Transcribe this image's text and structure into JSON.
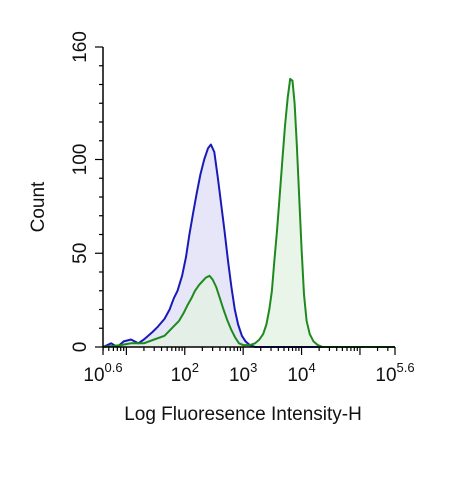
{
  "chart_data": {
    "type": "area",
    "xlabel": "Log Fluoresence Intensity-H",
    "ylabel": "Count",
    "x_scale": "log",
    "xlim": [
      3.98,
      398107
    ],
    "ylim": [
      0,
      160
    ],
    "y_ticks": [
      0,
      50,
      100,
      160
    ],
    "y_tick_labels": [
      "0",
      "50",
      "100",
      "160"
    ],
    "x_ticks": [
      {
        "value": 3.98,
        "base": "10",
        "exp": "0.6"
      },
      {
        "value": 100,
        "base": "10",
        "exp": "2"
      },
      {
        "value": 1000,
        "base": "10",
        "exp": "3"
      },
      {
        "value": 10000,
        "base": "10",
        "exp": "4"
      },
      {
        "value": 398107,
        "base": "10",
        "exp": "5.6"
      }
    ],
    "grid": false,
    "series": [
      {
        "color": "#1a1ab8",
        "fill": "#ddddf5",
        "points": [
          [
            4.0,
            0
          ],
          [
            5.5,
            2
          ],
          [
            7,
            0
          ],
          [
            9,
            3
          ],
          [
            12,
            4
          ],
          [
            16,
            2
          ],
          [
            20,
            4
          ],
          [
            28,
            8
          ],
          [
            35,
            11
          ],
          [
            45,
            15
          ],
          [
            55,
            20
          ],
          [
            65,
            26
          ],
          [
            75,
            30
          ],
          [
            90,
            38
          ],
          [
            105,
            48
          ],
          [
            120,
            60
          ],
          [
            140,
            72
          ],
          [
            160,
            82
          ],
          [
            185,
            92
          ],
          [
            215,
            100
          ],
          [
            250,
            106
          ],
          [
            280,
            108
          ],
          [
            320,
            104
          ],
          [
            370,
            90
          ],
          [
            420,
            76
          ],
          [
            480,
            62
          ],
          [
            550,
            46
          ],
          [
            630,
            32
          ],
          [
            720,
            20
          ],
          [
            820,
            12
          ],
          [
            950,
            6
          ],
          [
            1100,
            3
          ],
          [
            1300,
            1
          ],
          [
            1600,
            0
          ],
          [
            3000,
            0
          ],
          [
            398000,
            0
          ]
        ]
      },
      {
        "color": "#1e8a1e",
        "fill": "#e2f2e2",
        "points": [
          [
            4.0,
            0
          ],
          [
            8,
            1
          ],
          [
            12,
            2
          ],
          [
            20,
            2
          ],
          [
            30,
            4
          ],
          [
            45,
            6
          ],
          [
            60,
            10
          ],
          [
            80,
            14
          ],
          [
            95,
            18
          ],
          [
            110,
            22
          ],
          [
            130,
            26
          ],
          [
            150,
            30
          ],
          [
            175,
            33
          ],
          [
            200,
            35
          ],
          [
            230,
            37
          ],
          [
            265,
            38
          ],
          [
            300,
            36
          ],
          [
            345,
            32
          ],
          [
            400,
            26
          ],
          [
            460,
            20
          ],
          [
            540,
            14
          ],
          [
            630,
            9
          ],
          [
            730,
            5
          ],
          [
            850,
            2
          ],
          [
            1000,
            1
          ],
          [
            1300,
            1
          ],
          [
            1600,
            2
          ],
          [
            1900,
            4
          ],
          [
            2200,
            7
          ],
          [
            2500,
            12
          ],
          [
            2800,
            20
          ],
          [
            3100,
            30
          ],
          [
            3400,
            45
          ],
          [
            3800,
            62
          ],
          [
            4200,
            80
          ],
          [
            4700,
            100
          ],
          [
            5200,
            118
          ],
          [
            5800,
            133
          ],
          [
            6400,
            143
          ],
          [
            7000,
            142
          ],
          [
            7600,
            130
          ],
          [
            8300,
            108
          ],
          [
            9100,
            80
          ],
          [
            10000,
            52
          ],
          [
            11000,
            28
          ],
          [
            12200,
            14
          ],
          [
            13800,
            7
          ],
          [
            16000,
            3
          ],
          [
            19000,
            1
          ],
          [
            23000,
            0
          ],
          [
            398000,
            0
          ]
        ]
      }
    ]
  }
}
